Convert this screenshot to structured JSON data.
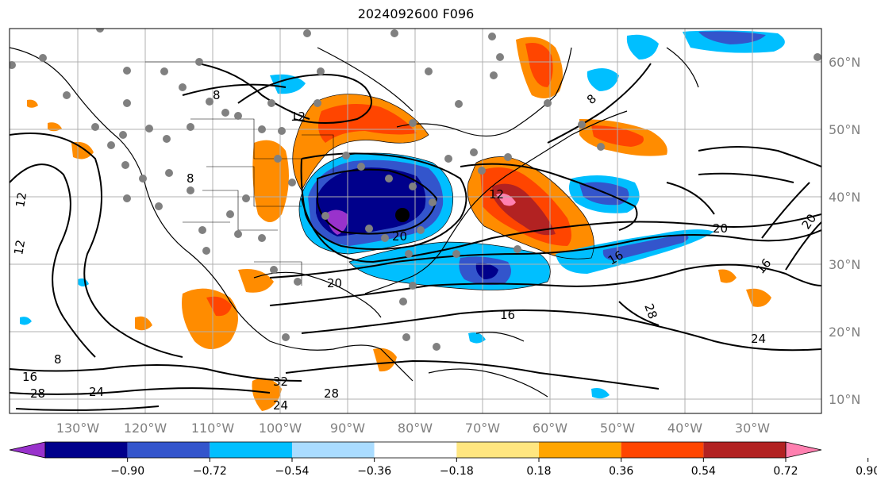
{
  "title": "2024092600 F096",
  "map": {
    "lon_labels": [
      "130°W",
      "120°W",
      "110°W",
      "100°W",
      "90°W",
      "80°W",
      "70°W",
      "60°W",
      "50°W",
      "40°W",
      "30°W"
    ],
    "lat_labels": [
      "60°N",
      "50°N",
      "40°N",
      "30°N",
      "20°N",
      "10°N"
    ],
    "contour_labels": [
      "8",
      "12",
      "12",
      "12",
      "12",
      "16",
      "16",
      "16",
      "16",
      "20",
      "20",
      "20",
      "20",
      "24",
      "24",
      "24",
      "28",
      "28",
      "28",
      "32",
      "8",
      "8",
      "8"
    ],
    "storm_marker": "black-dot"
  },
  "colorbar": {
    "tick_labels": [
      "−0.90",
      "−0.72",
      "−0.54",
      "−0.36",
      "−0.18",
      "0.18",
      "0.36",
      "0.54",
      "0.72",
      "0.90"
    ],
    "colors": [
      "#9932cc",
      "#00008b",
      "#3355cc",
      "#00bfff",
      "#aadcff",
      "#ffffff",
      "#ffe680",
      "#ffa500",
      "#ff4500",
      "#b22222",
      "#ff80b0"
    ]
  }
}
